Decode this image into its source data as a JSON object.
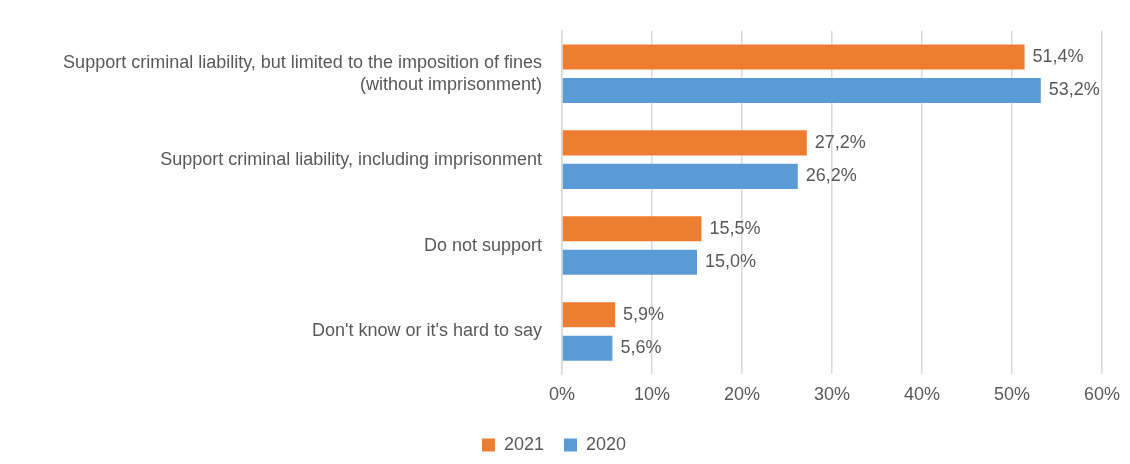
{
  "chart_data": {
    "type": "bar",
    "orientation": "horizontal",
    "categories": [
      "Support criminal liability, but limited to the imposition of fines (without imprisonment)",
      "Support criminal liability, including imprisonment",
      "Do not support",
      "Don't know or it's hard to say"
    ],
    "series": [
      {
        "name": "2021",
        "color": "#ed7d31",
        "values": [
          51.4,
          27.2,
          15.5,
          5.9
        ],
        "value_labels": [
          "51,4%",
          "27,2%",
          "15,5%",
          "5,9%"
        ]
      },
      {
        "name": "2020",
        "color": "#5b9bd5",
        "values": [
          53.2,
          26.2,
          15.0,
          5.6
        ],
        "value_labels": [
          "53,2%",
          "26,2%",
          "15,0%",
          "5,6%"
        ]
      }
    ],
    "xlim": [
      0,
      60
    ],
    "xticks": [
      {
        "value": 0,
        "label": "0%"
      },
      {
        "value": 10,
        "label": "10%"
      },
      {
        "value": 20,
        "label": "20%"
      },
      {
        "value": 30,
        "label": "30%"
      },
      {
        "value": 40,
        "label": "40%"
      },
      {
        "value": 50,
        "label": "50%"
      },
      {
        "value": 60,
        "label": "60%"
      }
    ],
    "grid": "x",
    "legend": "bottom"
  }
}
